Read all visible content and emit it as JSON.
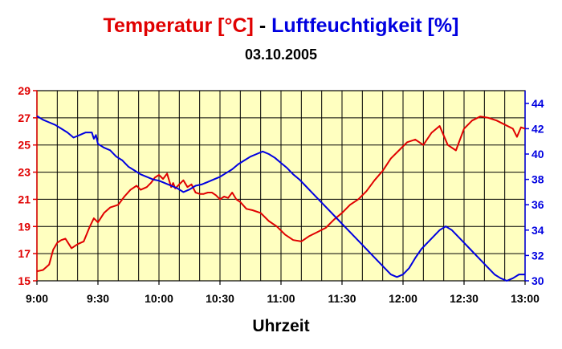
{
  "chart_data": {
    "type": "line",
    "title_part1": "Temperatur [°C]",
    "title_sep": " - ",
    "title_part2": "Luftfeuchtigkeit [%]",
    "subtitle": "03.10.2005",
    "xlabel": "Uhrzeit",
    "x_ticks": [
      "9:00",
      "9:30",
      "10:00",
      "10:30",
      "11:00",
      "11:30",
      "12:00",
      "12:30",
      "13:00"
    ],
    "x_range_minutes": [
      0,
      240
    ],
    "y_left": {
      "range": [
        15,
        29
      ],
      "ticks": [
        15,
        17,
        19,
        21,
        23,
        25,
        27,
        29
      ],
      "color": "#e00000"
    },
    "y_right": {
      "range": [
        30,
        45
      ],
      "ticks": [
        30,
        32,
        34,
        36,
        38,
        40,
        42,
        44
      ],
      "color": "#0000e0"
    },
    "grid": true,
    "background": "#ffffc0",
    "series": [
      {
        "axis": "left",
        "color": "#e00000",
        "x": [
          0,
          3,
          6,
          8,
          10,
          12,
          14,
          17,
          20,
          23,
          26,
          28,
          30,
          33,
          36,
          38,
          40,
          43,
          46,
          49,
          51,
          54,
          56,
          58,
          60,
          62,
          64,
          66,
          67,
          68,
          70,
          72,
          74,
          76,
          78,
          80,
          82,
          84,
          86,
          88,
          90,
          92,
          94,
          96,
          98,
          100,
          103,
          106,
          110,
          114,
          118,
          122,
          126,
          130,
          134,
          138,
          142,
          146,
          150,
          154,
          158,
          162,
          166,
          170,
          174,
          178,
          182,
          186,
          190,
          194,
          198,
          202,
          206,
          210,
          214,
          218,
          222,
          226,
          230,
          234,
          236,
          238,
          240
        ],
        "y": [
          15.7,
          15.8,
          16.2,
          17.3,
          17.8,
          18.0,
          18.1,
          17.4,
          17.7,
          17.9,
          19.0,
          19.6,
          19.3,
          20.0,
          20.4,
          20.5,
          20.6,
          21.2,
          21.7,
          22.0,
          21.7,
          21.9,
          22.2,
          22.6,
          22.8,
          22.5,
          22.9,
          21.9,
          22.2,
          21.8,
          22.1,
          22.4,
          21.9,
          22.1,
          21.5,
          21.4,
          21.4,
          21.5,
          21.5,
          21.3,
          21.0,
          21.2,
          21.1,
          21.5,
          21.0,
          20.8,
          20.3,
          20.2,
          20.0,
          19.4,
          19.0,
          18.4,
          18.0,
          17.9,
          18.3,
          18.6,
          18.9,
          19.5,
          20.0,
          20.6,
          21.0,
          21.6,
          22.4,
          23.1,
          24.0,
          24.6,
          25.2,
          25.4,
          25.0,
          25.9,
          26.4,
          25.0,
          24.6,
          26.2,
          26.8,
          27.1,
          27.0,
          26.8,
          26.5,
          26.2,
          25.6,
          26.3,
          26.2
        ]
      },
      {
        "axis": "right",
        "color": "#0000e0",
        "x": [
          0,
          3,
          6,
          9,
          12,
          15,
          18,
          21,
          24,
          27,
          28,
          29,
          30,
          33,
          36,
          39,
          42,
          45,
          48,
          51,
          54,
          57,
          60,
          63,
          66,
          69,
          72,
          75,
          78,
          81,
          84,
          87,
          90,
          93,
          96,
          99,
          102,
          105,
          108,
          111,
          114,
          117,
          120,
          123,
          126,
          129,
          132,
          135,
          138,
          141,
          144,
          147,
          150,
          153,
          156,
          159,
          162,
          165,
          168,
          171,
          174,
          177,
          180,
          183,
          186,
          189,
          192,
          195,
          198,
          201,
          204,
          207,
          210,
          213,
          216,
          219,
          222,
          225,
          228,
          231,
          234,
          237,
          240
        ],
        "y": [
          43.0,
          42.7,
          42.5,
          42.3,
          42.0,
          41.7,
          41.3,
          41.5,
          41.7,
          41.7,
          41.2,
          41.5,
          40.8,
          40.5,
          40.3,
          39.8,
          39.5,
          39.0,
          38.7,
          38.4,
          38.2,
          38.0,
          37.9,
          37.7,
          37.5,
          37.3,
          37.0,
          37.2,
          37.5,
          37.6,
          37.8,
          38.0,
          38.2,
          38.5,
          38.8,
          39.2,
          39.5,
          39.8,
          40.0,
          40.2,
          40.0,
          39.7,
          39.3,
          38.9,
          38.4,
          38.0,
          37.5,
          37.0,
          36.5,
          36.0,
          35.5,
          35.0,
          34.5,
          34.0,
          33.5,
          33.0,
          32.5,
          32.0,
          31.5,
          31.0,
          30.5,
          30.3,
          30.5,
          31.0,
          31.8,
          32.5,
          33.0,
          33.5,
          34.0,
          34.3,
          34.0,
          33.5,
          33.0,
          32.5,
          32.0,
          31.5,
          31.0,
          30.5,
          30.2,
          30.0,
          30.2,
          30.5,
          30.5
        ]
      }
    ]
  }
}
